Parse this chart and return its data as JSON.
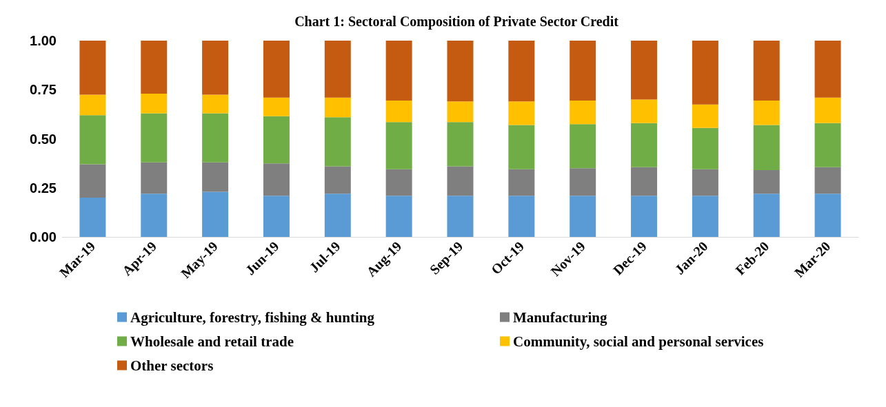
{
  "chart_data": {
    "type": "bar",
    "title": "Chart 1: Sectoral Composition of Private Sector Credit",
    "stacked": true,
    "grid": false,
    "legend": "bottom",
    "categories": [
      "Mar-19",
      "Apr-19",
      "May-19",
      "Jun-19",
      "Jul-19",
      "Aug-19",
      "Sep-19",
      "Oct-19",
      "Nov-19",
      "Dec-19",
      "Jan-20",
      "Feb-20",
      "Mar-20"
    ],
    "ylim": [
      0,
      1
    ],
    "yticks": [
      {
        "value": 0,
        "label": "0.00"
      },
      {
        "value": 0.25,
        "label": "0.25"
      },
      {
        "value": 0.5,
        "label": "0.50"
      },
      {
        "value": 0.75,
        "label": "0.75"
      },
      {
        "value": 1,
        "label": "1.00"
      }
    ],
    "series": [
      {
        "name": "Agriculture, forestry, fishing & hunting",
        "color": "#5b9bd5",
        "values": [
          0.2,
          0.22,
          0.23,
          0.21,
          0.22,
          0.21,
          0.21,
          0.21,
          0.21,
          0.21,
          0.21,
          0.22,
          0.22
        ]
      },
      {
        "name": "Manufacturing",
        "color": "#7f7f7f",
        "values": [
          0.17,
          0.16,
          0.15,
          0.165,
          0.14,
          0.135,
          0.15,
          0.135,
          0.14,
          0.145,
          0.135,
          0.12,
          0.135
        ]
      },
      {
        "name": "Wholesale and retail trade",
        "color": "#70ad47",
        "values": [
          0.25,
          0.25,
          0.25,
          0.24,
          0.25,
          0.24,
          0.225,
          0.225,
          0.225,
          0.225,
          0.21,
          0.23,
          0.225
        ]
      },
      {
        "name": "Community, social and personal services",
        "color": "#ffc000",
        "values": [
          0.105,
          0.1,
          0.095,
          0.095,
          0.1,
          0.11,
          0.105,
          0.12,
          0.12,
          0.12,
          0.12,
          0.125,
          0.13
        ]
      },
      {
        "name": "Other sectors",
        "color": "#c55a11",
        "values": [
          0.275,
          0.27,
          0.275,
          0.29,
          0.29,
          0.305,
          0.31,
          0.31,
          0.305,
          0.3,
          0.325,
          0.305,
          0.29
        ]
      }
    ]
  }
}
